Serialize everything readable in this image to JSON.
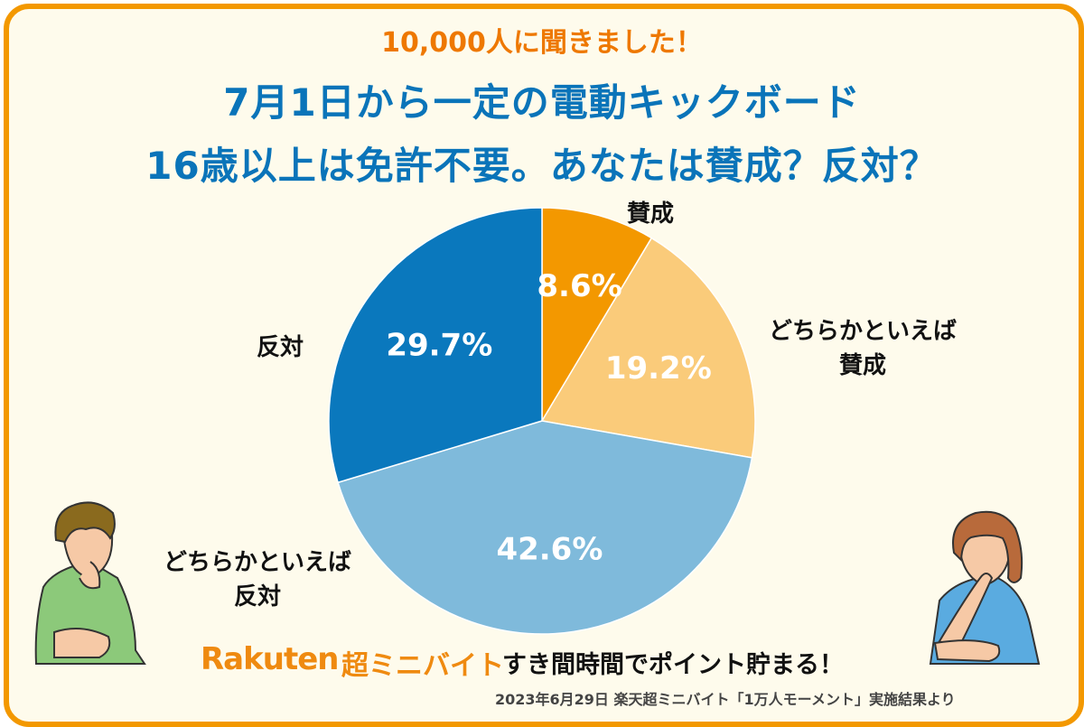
{
  "header": {
    "subtitle": "10,000人に聞きました！",
    "title_line1": "7月1日から一定の電動キックボード",
    "title_line2": "16歳以上は免許不要。あなたは賛成？反対？"
  },
  "chart_data": {
    "type": "pie",
    "title": "7月1日から一定の電動キックボード 16歳以上は免許不要。あなたは賛成？反対？",
    "slices": [
      {
        "label": "賛成",
        "value": 8.6,
        "value_label": "8.6%",
        "color": "#f39800",
        "label_lines": [
          "賛成"
        ]
      },
      {
        "label": "どちらかといえば賛成",
        "value": 19.2,
        "value_label": "19.2%",
        "color": "#facb7a",
        "label_lines": [
          "どちらかといえば",
          "賛成"
        ]
      },
      {
        "label": "どちらかといえば反対",
        "value": 42.6,
        "value_label": "42.6%",
        "color": "#7fbadb",
        "label_lines": [
          "どちらかといえば",
          "反対"
        ]
      },
      {
        "label": "反対",
        "value": 29.7,
        "value_label": "29.7%",
        "color": "#0a78bd",
        "label_lines": [
          "反対"
        ]
      }
    ],
    "start_angle_deg": 0,
    "direction": "clockwise"
  },
  "footer": {
    "brand": "Rakuten",
    "brand_suffix": "超ミニバイト",
    "tagline": "すき間時間でポイント貯まる！",
    "source": "2023年6月29日 楽天超ミニバイト「1万人モーメント」実施結果より"
  }
}
